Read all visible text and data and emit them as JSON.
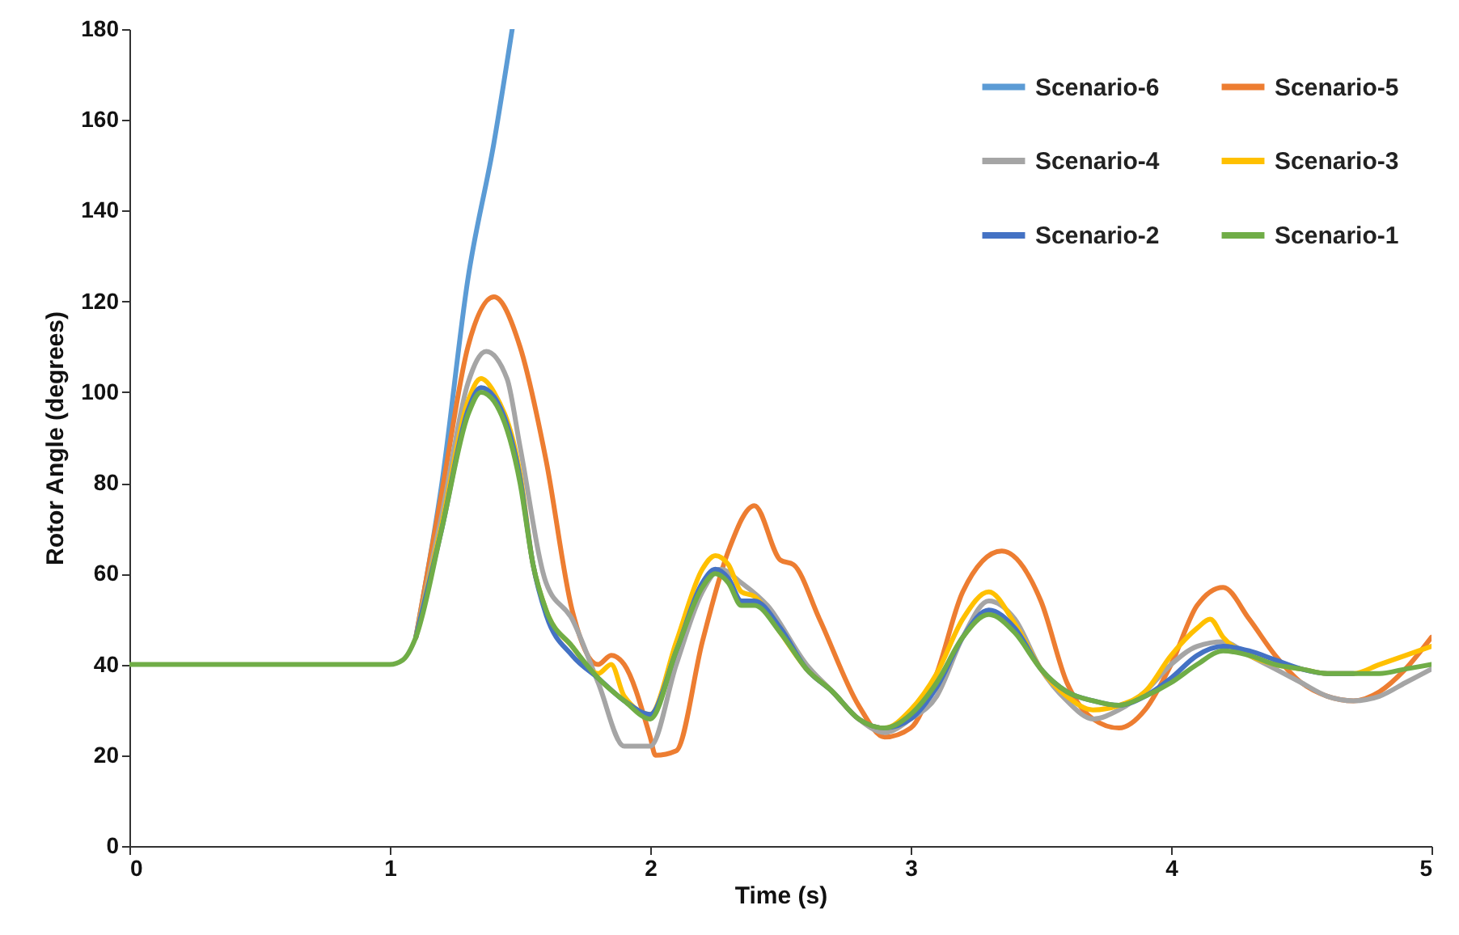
{
  "chart_data": {
    "type": "line",
    "xlabel": "Time (s)",
    "ylabel": "Rotor Angle (degrees)",
    "xlim": [
      0,
      5
    ],
    "ylim": [
      0,
      180
    ],
    "xticks": [
      0,
      1,
      2,
      3,
      4,
      5
    ],
    "yticks": [
      0,
      20,
      40,
      60,
      80,
      100,
      120,
      140,
      160,
      180
    ],
    "grid": false,
    "legend": "top right",
    "line_style": "solid",
    "marker": "none",
    "series": [
      {
        "name": "Scenario-6",
        "color": "#5b9bd5",
        "x": [
          1.1,
          1.2,
          1.3,
          1.4,
          1.47
        ],
        "values": [
          46,
          80,
          125,
          155,
          180
        ]
      },
      {
        "name": "Scenario-5",
        "color": "#ed7d31",
        "x": [
          1.1,
          1.2,
          1.3,
          1.4,
          1.5,
          1.6,
          1.7,
          1.8,
          1.85,
          1.9,
          2.0,
          2.02,
          2.1,
          2.2,
          2.3,
          2.4,
          2.5,
          2.55,
          2.65,
          2.8,
          2.9,
          3.0,
          3.1,
          3.2,
          3.35,
          3.5,
          3.6,
          3.7,
          3.8,
          3.9,
          4.0,
          4.1,
          4.2,
          4.3,
          4.4,
          4.5,
          4.6,
          4.7,
          4.8,
          4.9,
          5.0
        ],
        "values": [
          46,
          78,
          110,
          121,
          110,
          85,
          52,
          40,
          42,
          40,
          24,
          20,
          21,
          45,
          65,
          75,
          63,
          62,
          50,
          31,
          24,
          26,
          38,
          56,
          65,
          54,
          36,
          28,
          26,
          30,
          40,
          53,
          57,
          50,
          42,
          36,
          33,
          32,
          34,
          39,
          46
        ]
      },
      {
        "name": "Scenario-4",
        "color": "#a5a5a5",
        "x": [
          1.1,
          1.2,
          1.3,
          1.37,
          1.45,
          1.5,
          1.6,
          1.7,
          1.8,
          1.9,
          2.0,
          2.1,
          2.2,
          2.27,
          2.35,
          2.45,
          2.6,
          2.7,
          2.8,
          2.9,
          3.0,
          3.1,
          3.2,
          3.3,
          3.4,
          3.5,
          3.6,
          3.7,
          3.8,
          3.9,
          4.0,
          4.1,
          4.2,
          4.3,
          4.4,
          4.5,
          4.6,
          4.7,
          4.8,
          4.9,
          5.0
        ],
        "values": [
          46,
          73,
          102,
          109,
          103,
          88,
          58,
          50,
          36,
          22,
          22,
          40,
          56,
          61,
          58,
          53,
          40,
          34,
          28,
          25,
          28,
          33,
          46,
          54,
          50,
          39,
          32,
          28,
          30,
          34,
          40,
          44,
          45,
          42,
          39,
          36,
          33,
          32,
          33,
          36,
          39
        ]
      },
      {
        "name": "Scenario-3",
        "color": "#ffc000",
        "x": [
          1.1,
          1.2,
          1.3,
          1.35,
          1.4,
          1.5,
          1.55,
          1.6,
          1.7,
          1.8,
          1.85,
          1.9,
          2.0,
          2.1,
          2.2,
          2.25,
          2.3,
          2.35,
          2.4,
          2.5,
          2.6,
          2.7,
          2.8,
          2.9,
          3.0,
          3.1,
          3.2,
          3.3,
          3.4,
          3.5,
          3.6,
          3.7,
          3.8,
          3.9,
          4.0,
          4.1,
          4.15,
          4.2,
          4.3,
          4.4,
          4.5,
          4.6,
          4.7,
          4.8,
          4.9,
          5.0
        ],
        "values": [
          46,
          71,
          98,
          103,
          100,
          82,
          62,
          52,
          44,
          38,
          40,
          33,
          29,
          45,
          61,
          64,
          62,
          56,
          55,
          47,
          39,
          34,
          28,
          26,
          30,
          38,
          50,
          56,
          49,
          39,
          33,
          30,
          31,
          34,
          42,
          48,
          50,
          46,
          42,
          40,
          39,
          38,
          38,
          40,
          42,
          44
        ]
      },
      {
        "name": "Scenario-2",
        "color": "#4472c4",
        "x": [
          1.1,
          1.2,
          1.3,
          1.35,
          1.4,
          1.5,
          1.55,
          1.6,
          1.7,
          1.8,
          1.9,
          2.0,
          2.1,
          2.2,
          2.25,
          2.3,
          2.35,
          2.4,
          2.5,
          2.6,
          2.7,
          2.8,
          2.9,
          3.0,
          3.1,
          3.2,
          3.3,
          3.4,
          3.5,
          3.6,
          3.7,
          3.8,
          3.9,
          4.0,
          4.1,
          4.2,
          4.3,
          4.4,
          4.5,
          4.6,
          4.7
        ],
        "values": [
          46,
          70,
          96,
          101,
          99,
          81,
          62,
          51,
          42,
          37,
          32,
          29,
          43,
          58,
          61,
          59,
          54,
          54,
          48,
          39,
          34,
          28,
          26,
          28,
          35,
          46,
          52,
          48,
          39,
          34,
          32,
          31,
          33,
          37,
          42,
          44,
          43,
          41,
          39,
          38,
          38
        ]
      },
      {
        "name": "Scenario-1",
        "color": "#70ad47",
        "x": [
          0,
          1,
          1.05,
          1.1,
          1.2,
          1.3,
          1.35,
          1.4,
          1.5,
          1.55,
          1.6,
          1.7,
          1.8,
          1.9,
          2.0,
          2.1,
          2.2,
          2.25,
          2.3,
          2.35,
          2.4,
          2.5,
          2.6,
          2.7,
          2.8,
          2.9,
          3.0,
          3.1,
          3.2,
          3.3,
          3.4,
          3.5,
          3.6,
          3.7,
          3.8,
          3.9,
          4.0,
          4.1,
          4.2,
          4.3,
          4.4,
          4.5,
          4.6,
          4.7,
          4.8,
          4.9,
          5.0
        ],
        "values": [
          40,
          40,
          41,
          46,
          70,
          95,
          100,
          98,
          80,
          62,
          52,
          44,
          37,
          32,
          28,
          43,
          57,
          60,
          58,
          53,
          53,
          47,
          39,
          34,
          28,
          26,
          29,
          36,
          46,
          51,
          47,
          39,
          34,
          32,
          31,
          33,
          36,
          40,
          43,
          42,
          40,
          39,
          38,
          38,
          38,
          39,
          40
        ]
      }
    ]
  }
}
